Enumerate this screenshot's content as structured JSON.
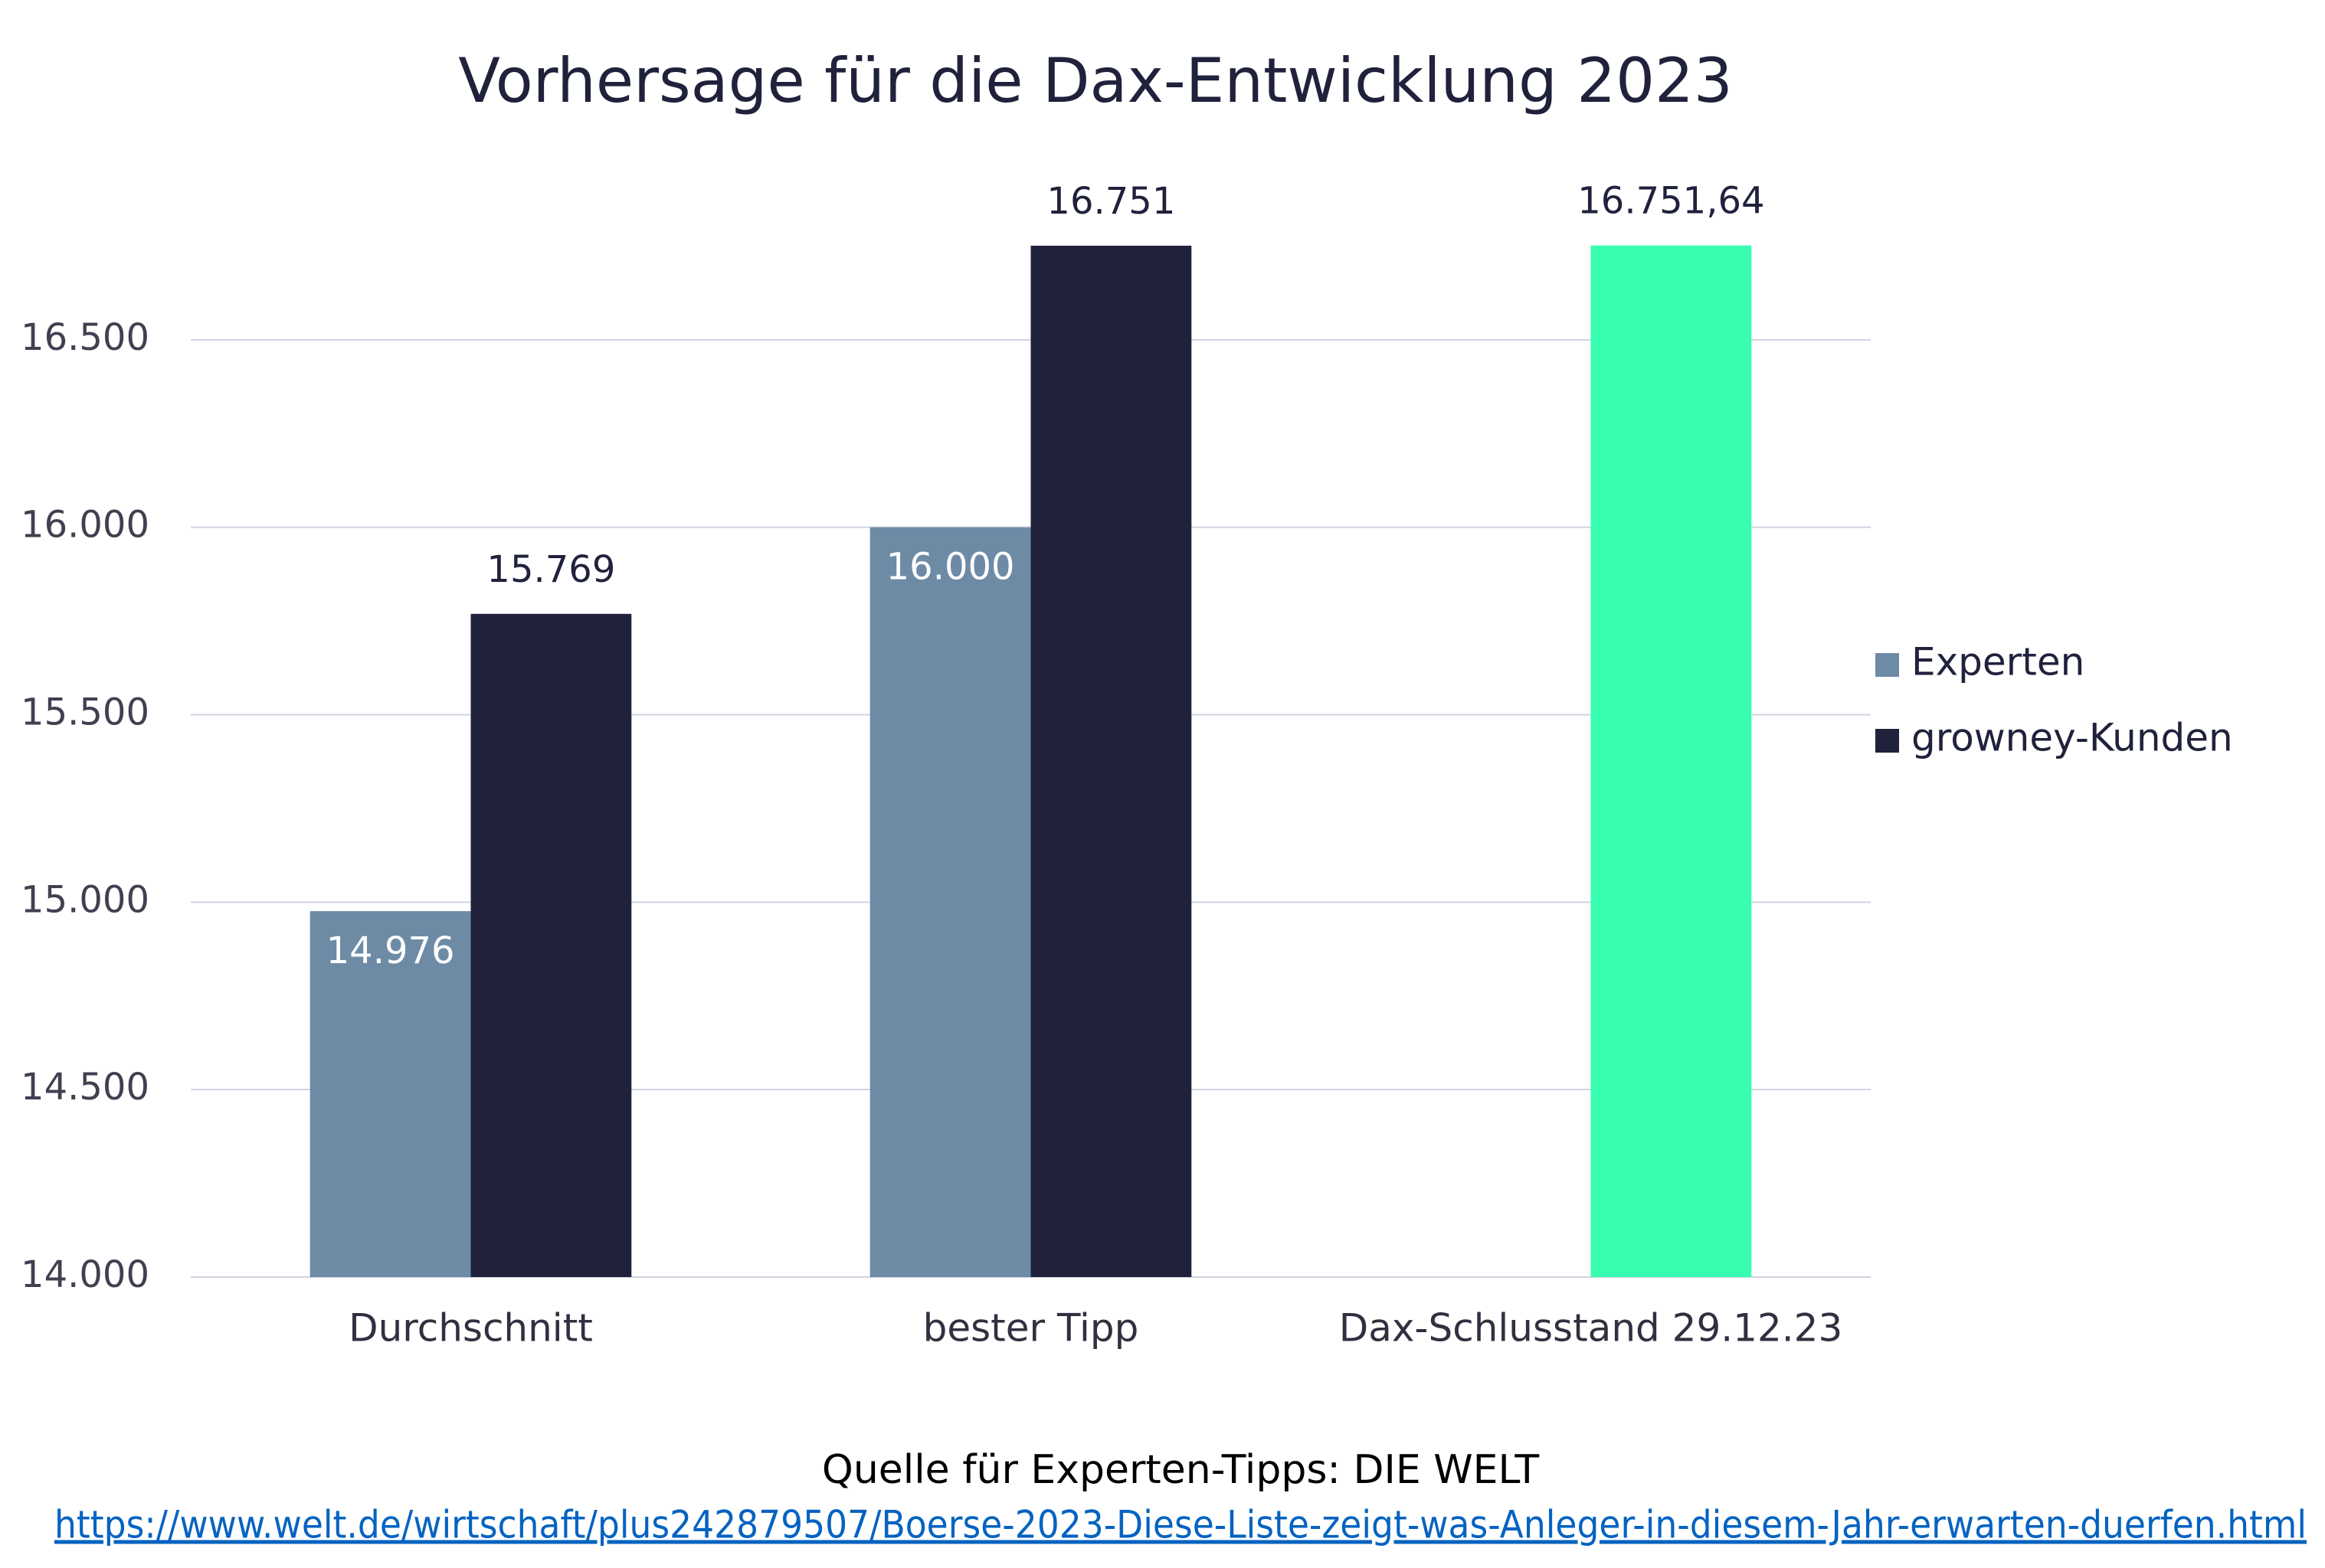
{
  "chart_data": {
    "type": "bar",
    "title": "Vorhersage für die Dax-Entwicklung 2023",
    "categories": [
      "Durchschnitt",
      "bester Tipp",
      "Dax-Schlusstand 29.12.23"
    ],
    "series": [
      {
        "name": "Experten",
        "color": "#6e8ba6",
        "values": [
          14976,
          16000,
          null
        ],
        "value_labels": [
          "14.976",
          "16.000",
          null
        ]
      },
      {
        "name": "growney-Kunden",
        "color": "#20223c",
        "colors": [
          "#20223c",
          "#20223c",
          "#38ffb0"
        ],
        "values": [
          15769,
          16751,
          16751.64
        ],
        "value_labels": [
          "15.769",
          "16.751",
          "16.751,64"
        ]
      }
    ],
    "ylim": [
      14000,
      17000
    ],
    "yticks": [
      {
        "value": 14000,
        "label": "14.000"
      },
      {
        "value": 14500,
        "label": "14.500"
      },
      {
        "value": 15000,
        "label": "15.000"
      },
      {
        "value": 15500,
        "label": "15.500"
      },
      {
        "value": 16000,
        "label": "16.000"
      },
      {
        "value": 16500,
        "label": "16.500"
      }
    ],
    "grid": true,
    "legend": "right",
    "source": "Quelle für Experten-Tipps: DIE WELT",
    "source_url": "https://www.welt.de/wirtschaft/plus242879507/Boerse-2023-Diese-Liste-zeigt-was-Anleger-in-diesem-Jahr-erwarten-duerfen.html"
  }
}
